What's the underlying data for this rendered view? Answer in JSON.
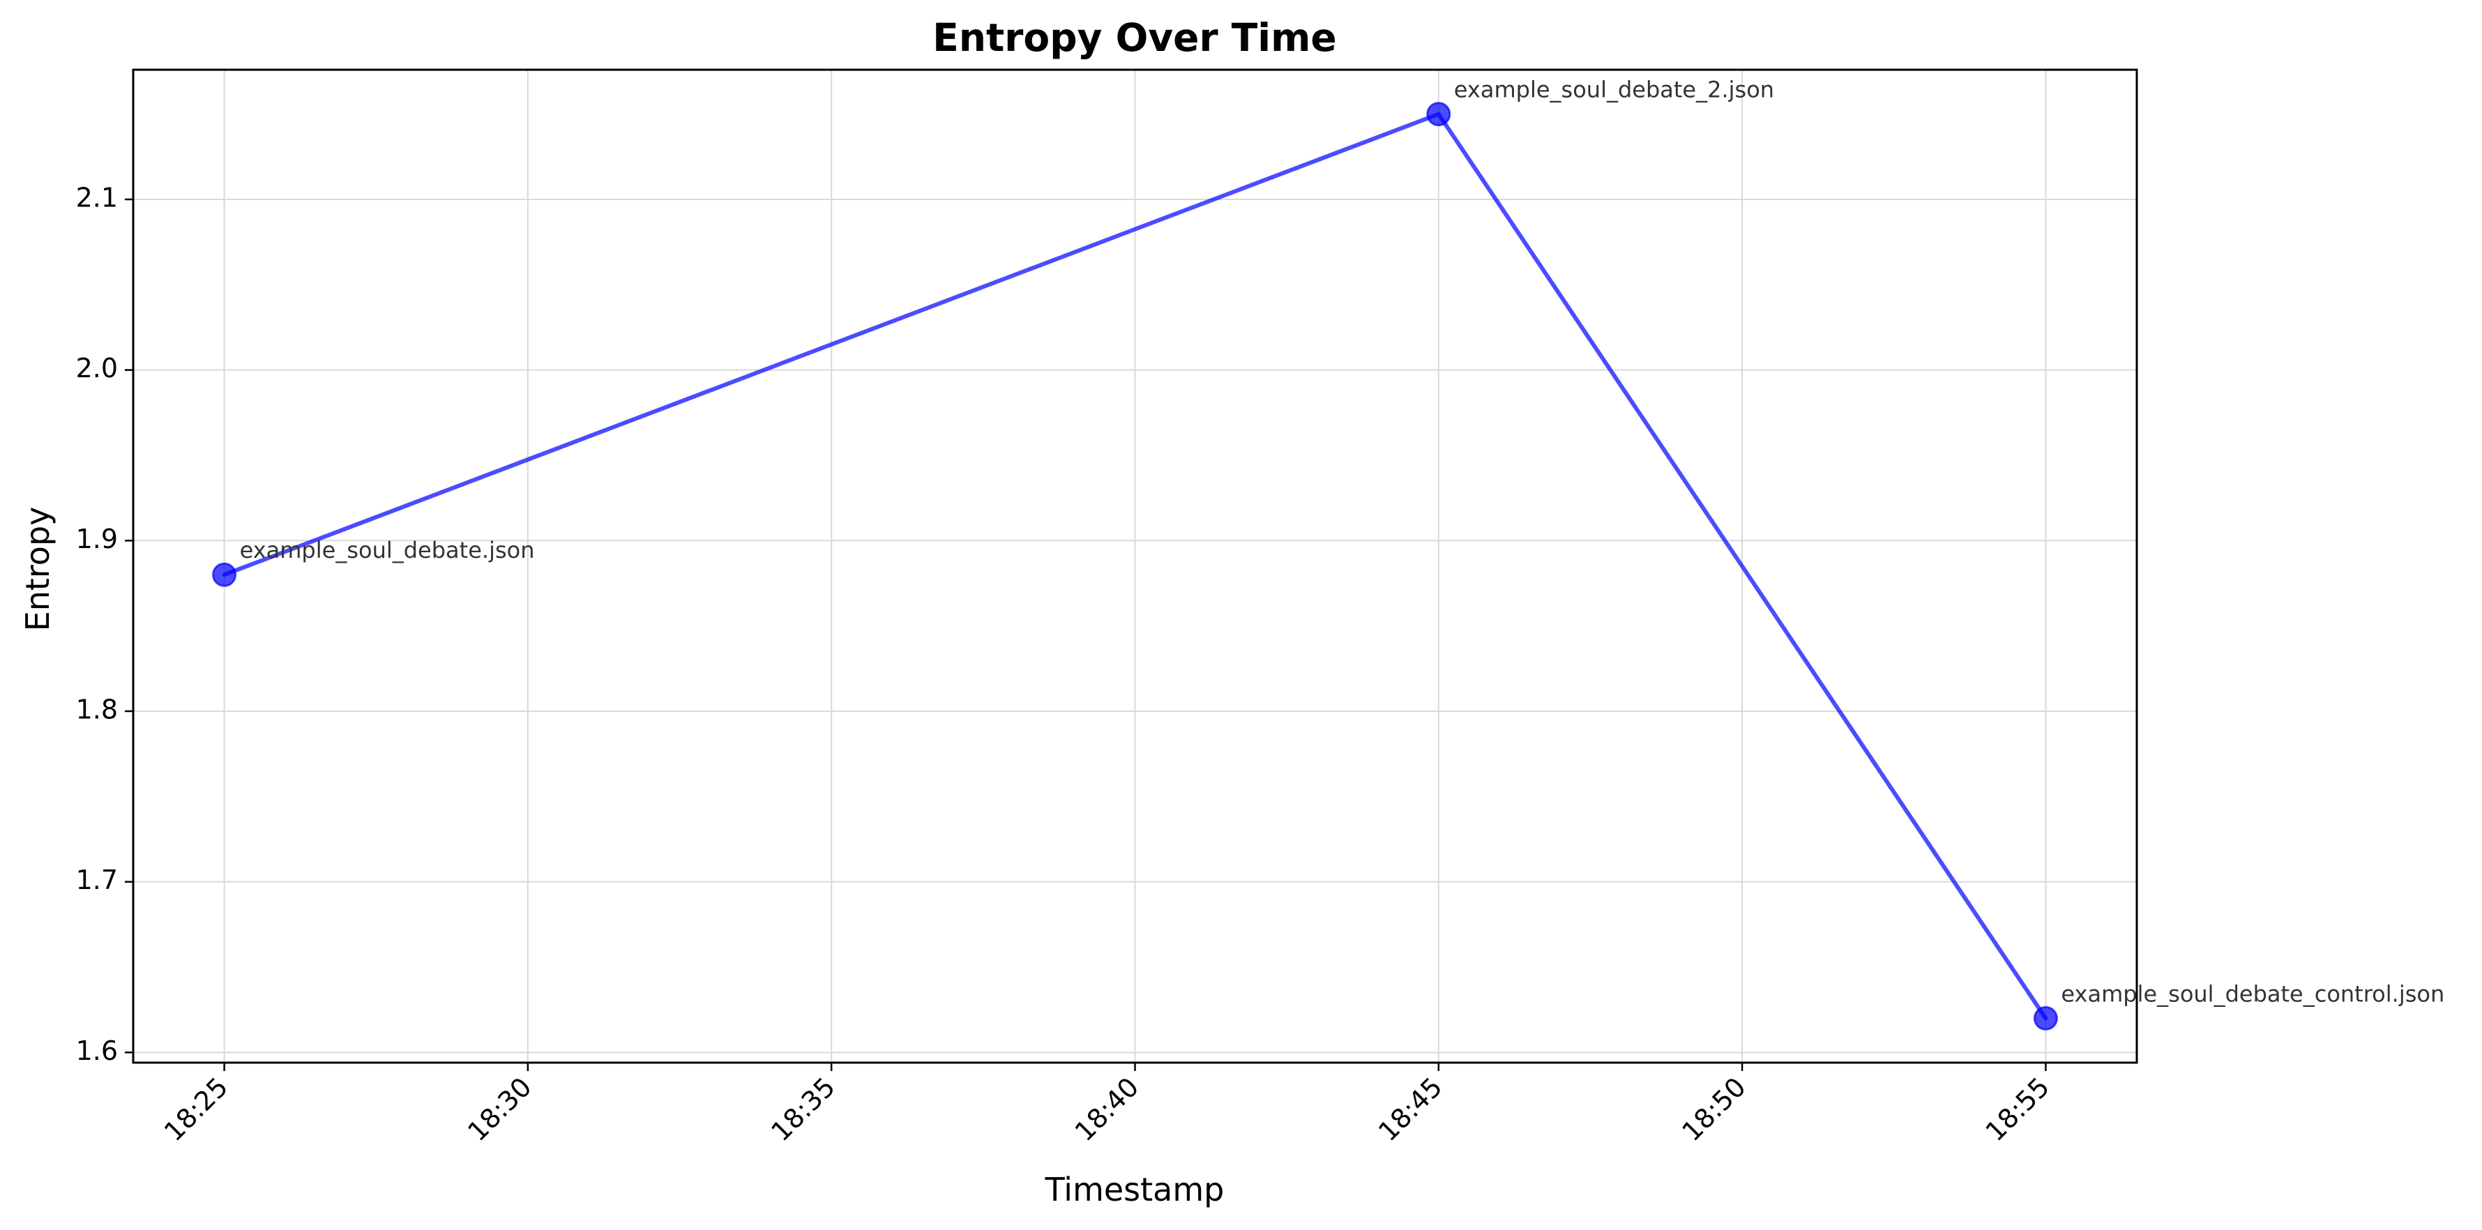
{
  "chart_data": {
    "type": "line",
    "title": "Entropy Over Time",
    "xlabel": "Timestamp",
    "ylabel": "Entropy",
    "x_ticks": [
      "18:25",
      "18:30",
      "18:35",
      "18:40",
      "18:45",
      "18:50",
      "18:55"
    ],
    "x_tick_minutes": [
      1105,
      1110,
      1115,
      1120,
      1125,
      1130,
      1135
    ],
    "xlim_minutes": [
      1103.5,
      1136.5
    ],
    "y_ticks": [
      "1.6",
      "1.7",
      "1.8",
      "1.9",
      "2.0",
      "2.1"
    ],
    "y_tick_values": [
      1.6,
      1.7,
      1.8,
      1.9,
      2.0,
      2.1
    ],
    "ylim": [
      1.594,
      2.176
    ],
    "grid": true,
    "series": [
      {
        "color": "#0000ff",
        "points": [
          {
            "x": "18:25",
            "x_minutes": 1105,
            "y": 1.88,
            "label": "example_soul_debate.json"
          },
          {
            "x": "18:45",
            "x_minutes": 1125,
            "y": 2.15,
            "label": "example_soul_debate_2.json"
          },
          {
            "x": "18:55",
            "x_minutes": 1135,
            "y": 1.62,
            "label": "example_soul_debate_control.json"
          }
        ]
      }
    ]
  }
}
